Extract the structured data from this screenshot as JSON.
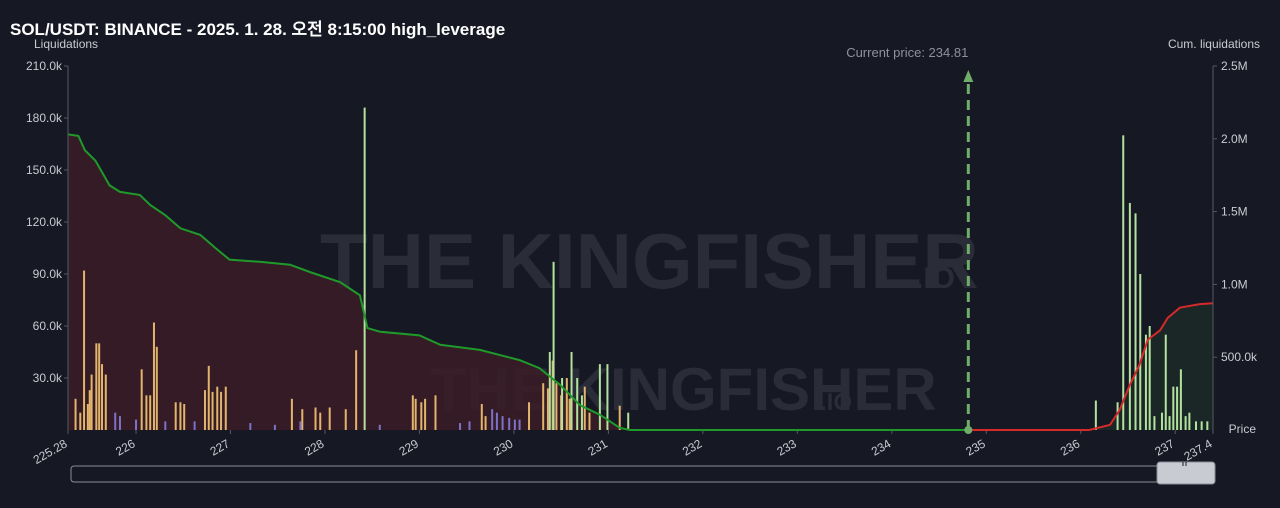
{
  "chart_data": {
    "type": "liquidation-histogram",
    "title": "SOL/USDT: BINANCE - 2025. 1. 28. 오전 8:15:00 high_leverage",
    "y_label": "Liquidations",
    "y2_label": "Cum. liquidations",
    "x_label": "Price",
    "current_price": 234.81,
    "current_price_label": "Current price: 234.81",
    "current_price_color": "#6fae6a",
    "watermark": [
      "THE KINGFISHER",
      ".IO"
    ],
    "xlim": [
      225.28,
      237.4
    ],
    "xticks": [
      225.28,
      226,
      227,
      228,
      229,
      230,
      231,
      232,
      233,
      234,
      235,
      236,
      237,
      237.4
    ],
    "ylim": [
      0,
      210000
    ],
    "yticks": [
      {
        "value": 30000,
        "label": "30.0k"
      },
      {
        "value": 60000,
        "label": "60.0k"
      },
      {
        "value": 90000,
        "label": "90.0k"
      },
      {
        "value": 120000,
        "label": "120.0k"
      },
      {
        "value": 150000,
        "label": "150.0k"
      },
      {
        "value": 180000,
        "label": "180.0k"
      },
      {
        "value": 210000,
        "label": "210.0k"
      }
    ],
    "y2lim": [
      0,
      2500000
    ],
    "y2ticks": [
      {
        "value": 500000,
        "label": "500.0k"
      },
      {
        "value": 1000000,
        "label": "1.0M"
      },
      {
        "value": 1500000,
        "label": "1.5M"
      },
      {
        "value": 2000000,
        "label": "2.0M"
      },
      {
        "value": 2500000,
        "label": "2.5M"
      }
    ],
    "bars": [
      {
        "color": "#e2b46c",
        "x": [
          225.36,
          225.41,
          225.45,
          225.49,
          225.51,
          225.53,
          225.58,
          225.61,
          225.64,
          225.68,
          226.06,
          226.11,
          226.15,
          226.19,
          226.22,
          226.42,
          226.47,
          226.51,
          226.73,
          226.77,
          226.81,
          226.86,
          226.9,
          226.95,
          227.65,
          227.76,
          227.9,
          227.95,
          228.05,
          228.22,
          228.33,
          228.93,
          228.96,
          229.02,
          229.06,
          229.17,
          229.66,
          229.7,
          230.16,
          230.31,
          230.36,
          230.41,
          230.45,
          230.5,
          230.56,
          230.59,
          230.75,
          230.8,
          231.12
        ],
        "values": [
          18000,
          10000,
          92000,
          15000,
          23000,
          32000,
          50000,
          50000,
          38000,
          32000,
          35000,
          20000,
          20000,
          62000,
          48000,
          16000,
          16000,
          15000,
          23000,
          37000,
          22000,
          25000,
          22000,
          25000,
          18000,
          12000,
          13000,
          10000,
          13000,
          12000,
          46000,
          20000,
          18000,
          16000,
          18000,
          20000,
          15000,
          8000,
          16000,
          27000,
          24000,
          40000,
          27000,
          20000,
          30000,
          18000,
          25000,
          10000,
          14000
        ]
      },
      {
        "color": "#7c73c8",
        "x": [
          225.78,
          225.83,
          226.0,
          226.31,
          226.62,
          227.21,
          227.47,
          227.74,
          228.58,
          229.43,
          229.53,
          229.77,
          229.82,
          229.88,
          229.95,
          230.01,
          230.06
        ],
        "values": [
          10000,
          8000,
          6000,
          5000,
          5000,
          4000,
          3000,
          5000,
          3000,
          4000,
          5000,
          12000,
          10000,
          8000,
          7000,
          6000,
          6000
        ]
      },
      {
        "color": "#b3e29f",
        "x": [
          228.42,
          230.38,
          230.42,
          230.51,
          230.61,
          230.67,
          230.72,
          230.91,
          230.99,
          231.21,
          236.16,
          236.39,
          236.45,
          236.52,
          236.58,
          236.63,
          236.69,
          236.73,
          236.78,
          236.86,
          236.9,
          236.94,
          236.98,
          237.02,
          237.06,
          237.11,
          237.15,
          237.22,
          237.28,
          237.34
        ],
        "values": [
          186000,
          45000,
          97000,
          30000,
          45000,
          30000,
          20000,
          38000,
          38000,
          10000,
          17000,
          16000,
          170000,
          131000,
          125000,
          90000,
          55000,
          60000,
          8000,
          10000,
          55000,
          8000,
          25000,
          25000,
          35000,
          8000,
          10000,
          5000,
          5000,
          5000
        ]
      }
    ],
    "lines": [
      {
        "color": "#1f9a2a",
        "fill": "#3a1c26",
        "axis": "y2",
        "x": [
          225.28,
          225.39,
          225.46,
          225.57,
          225.72,
          225.83,
          226.04,
          226.15,
          226.31,
          226.47,
          226.68,
          226.84,
          226.99,
          227.31,
          227.63,
          227.84,
          228.16,
          228.37,
          228.45,
          228.58,
          229.0,
          229.22,
          229.64,
          230.06,
          230.27,
          230.49,
          230.7,
          230.91,
          231.12,
          231.23,
          234.81
        ],
        "values": [
          2030000,
          2020000,
          1920000,
          1850000,
          1680000,
          1635000,
          1615000,
          1545000,
          1475000,
          1385000,
          1340000,
          1250000,
          1170000,
          1155000,
          1135000,
          1085000,
          1015000,
          925000,
          700000,
          675000,
          650000,
          585000,
          550000,
          480000,
          425000,
          310000,
          170000,
          105000,
          15000,
          0,
          0
        ]
      },
      {
        "color": "#d62a2a",
        "fill": "#1b2a27",
        "axis": "y2",
        "x": [
          234.81,
          236.09,
          236.31,
          236.41,
          236.52,
          236.62,
          236.71,
          236.84,
          236.92,
          237.05,
          237.26,
          237.4
        ],
        "values": [
          0,
          0,
          35000,
          135000,
          310000,
          445000,
          620000,
          685000,
          770000,
          840000,
          865000,
          870000
        ]
      }
    ]
  }
}
